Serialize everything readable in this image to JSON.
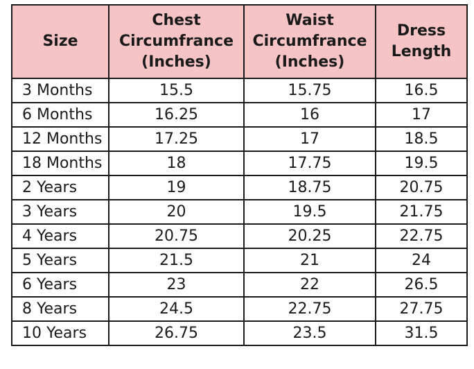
{
  "table": {
    "headers": [
      "Size",
      "Chest Circumfrance (Inches)",
      "Waist Circumfrance (Inches)",
      "Dress Length"
    ],
    "header_lines": [
      [
        "Size"
      ],
      [
        "Chest",
        "Circumfrance",
        "(Inches)"
      ],
      [
        "Waist",
        "Circumfrance",
        "(Inches)"
      ],
      [
        "Dress",
        "Length"
      ]
    ],
    "rows": [
      [
        "3 Months",
        "15.5",
        "15.75",
        "16.5"
      ],
      [
        "6 Months",
        "16.25",
        "16",
        "17"
      ],
      [
        "12 Months",
        "17.25",
        "17",
        "18.5"
      ],
      [
        "18 Months",
        "18",
        "17.75",
        "19.5"
      ],
      [
        "2 Years",
        "19",
        "18.75",
        "20.75"
      ],
      [
        "3 Years",
        "20",
        "19.5",
        "21.75"
      ],
      [
        "4 Years",
        "20.75",
        "20.25",
        "22.75"
      ],
      [
        "5 Years",
        "21.5",
        "21",
        "24"
      ],
      [
        "6 Years",
        "23",
        "22",
        "26.5"
      ],
      [
        "8 Years",
        "24.5",
        "22.75",
        "27.75"
      ],
      [
        "10 Years",
        "26.75",
        "23.5",
        "31.5"
      ]
    ]
  },
  "colors": {
    "header_bg": "#f7c4c6",
    "border": "#1a1a1a",
    "text": "#1a1a1a"
  }
}
